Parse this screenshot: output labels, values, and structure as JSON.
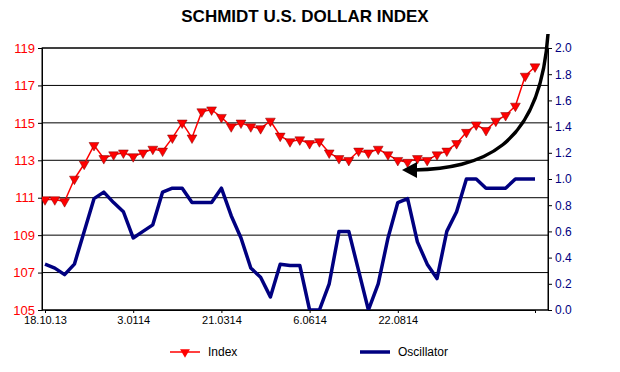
{
  "chart_data": {
    "type": "line",
    "title": "SCHMIDT U.S. DOLLAR INDEX",
    "categories": [
      "18.10.13",
      null,
      null,
      null,
      null,
      null,
      null,
      null,
      null,
      "3.0114",
      null,
      null,
      null,
      null,
      null,
      null,
      null,
      null,
      "21.0314",
      null,
      null,
      null,
      null,
      null,
      null,
      null,
      null,
      "6.0614",
      null,
      null,
      null,
      null,
      null,
      null,
      null,
      null,
      "22.0814",
      null,
      null,
      null,
      null,
      null,
      null,
      null,
      null,
      null,
      null,
      null,
      null,
      null,
      null
    ],
    "series": [
      {
        "name": "Index",
        "color": "#ff0000",
        "marker": "triangle-down",
        "line_style": "solid",
        "values": [
          110.9,
          110.9,
          110.8,
          112.0,
          112.8,
          113.8,
          113.1,
          113.3,
          113.4,
          113.2,
          113.4,
          113.6,
          113.5,
          114.2,
          115.0,
          114.2,
          115.6,
          115.7,
          115.3,
          114.8,
          115.0,
          114.8,
          114.7,
          115.1,
          114.3,
          114.0,
          114.1,
          113.9,
          114.0,
          113.4,
          113.1,
          113.0,
          113.5,
          113.4,
          113.6,
          113.3,
          113.0,
          112.9,
          113.1,
          113.0,
          113.3,
          113.5,
          113.9,
          114.5,
          114.9,
          114.6,
          115.1,
          115.4,
          115.9,
          117.5,
          118.0
        ]
      },
      {
        "name": "Oscillator",
        "color": "#000080",
        "line_style": "solid",
        "axis": "y2",
        "values": [
          0.35,
          0.32,
          0.27,
          0.35,
          0.6,
          0.85,
          0.9,
          0.82,
          0.75,
          0.55,
          0.6,
          0.65,
          0.9,
          0.93,
          0.93,
          0.82,
          0.82,
          0.82,
          0.93,
          0.72,
          0.55,
          0.32,
          0.25,
          0.1,
          0.35,
          0.34,
          0.34,
          0.0,
          0.0,
          0.2,
          0.6,
          0.6,
          0.3,
          0.0,
          0.2,
          0.55,
          0.82,
          0.85,
          0.52,
          0.35,
          0.24,
          0.6,
          0.75,
          1.0,
          1.0,
          0.93,
          0.93,
          0.93,
          1.0,
          1.0,
          1.0
        ]
      }
    ],
    "ylim": [
      105,
      119
    ],
    "yticks": [
      105,
      107,
      109,
      111,
      113,
      115,
      117,
      119
    ],
    "y2lim": [
      0,
      2
    ],
    "y2ticks": [
      {
        "value": 0,
        "label": "0.0"
      },
      0.2,
      0.4,
      0.6,
      0.8,
      {
        "value": 1,
        "label": "1.0"
      },
      1.2,
      1.4,
      1.6,
      1.8,
      {
        "value": 2,
        "label": "2.0"
      }
    ],
    "grid": true,
    "legend": "bottom"
  }
}
